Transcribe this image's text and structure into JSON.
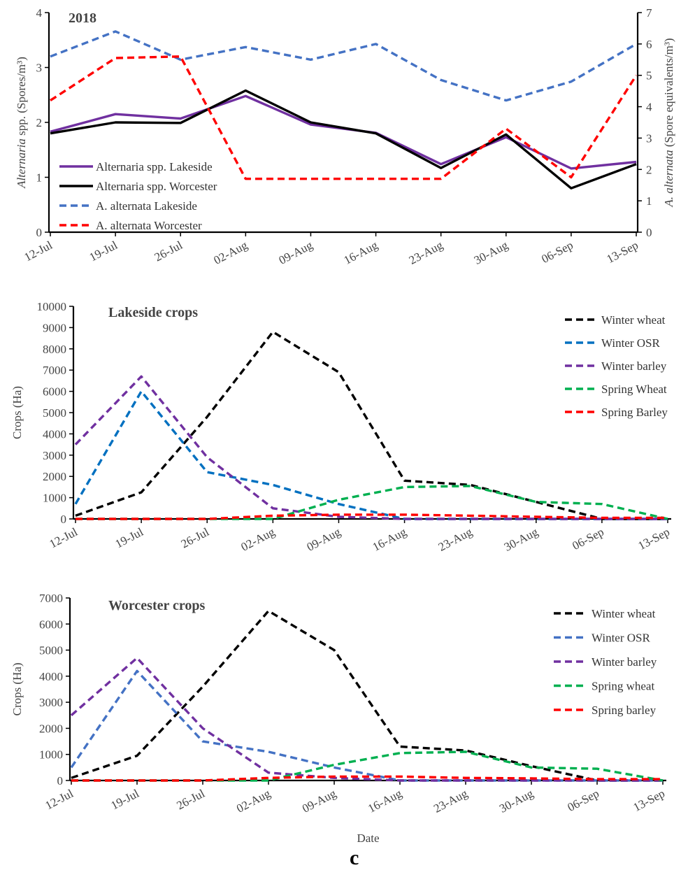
{
  "figure_letter": "c",
  "chart_data": [
    {
      "type": "line",
      "title": "2018",
      "categories": [
        "12-Jul",
        "19-Jul",
        "26-Jul",
        "02-Aug",
        "09-Aug",
        "16-Aug",
        "23-Aug",
        "30-Aug",
        "06-Sep",
        "13-Sep"
      ],
      "ylabel_left_italic": "Alternaria",
      "ylabel_left_rest": " spp. (Spores/m³)",
      "ylabel_right_italic": "A. alternata",
      "ylabel_right_rest": " (Spore equivalents/m³)",
      "ylim": [
        0,
        4
      ],
      "y2lim": [
        0,
        7
      ],
      "yticks": [
        0,
        1,
        2,
        3,
        4
      ],
      "y2ticks": [
        0,
        1,
        2,
        3,
        4,
        5,
        6,
        7
      ],
      "legend_position": "bottom-left",
      "series": [
        {
          "name": "Alternaria spp. Lakeside",
          "axis": "left",
          "color": "#7030a0",
          "dash": false,
          "values": [
            1.83,
            2.15,
            2.07,
            2.48,
            1.96,
            1.81,
            1.24,
            1.73,
            1.16,
            1.28
          ]
        },
        {
          "name": "Alternaria spp. Worcester",
          "axis": "left",
          "color": "#000000",
          "dash": false,
          "values": [
            1.8,
            2.0,
            1.99,
            2.58,
            2.0,
            1.8,
            1.17,
            1.78,
            0.8,
            1.24
          ]
        },
        {
          "name": "A. alternata Lakeside",
          "axis": "right",
          "color": "#4472c4",
          "dash": true,
          "values": [
            5.6,
            6.4,
            5.5,
            5.9,
            5.5,
            6.0,
            4.85,
            4.2,
            4.8,
            6.0
          ]
        },
        {
          "name": "A. alternata Worcester",
          "axis": "right",
          "color": "#ff0000",
          "dash": true,
          "values": [
            4.2,
            5.55,
            5.6,
            1.7,
            1.7,
            1.7,
            1.7,
            3.3,
            1.75,
            5.0
          ]
        }
      ]
    },
    {
      "type": "line",
      "title": "Lakeside crops",
      "categories": [
        "12-Jul",
        "19-Jul",
        "26-Jul",
        "02-Aug",
        "09-Aug",
        "16-Aug",
        "23-Aug",
        "30-Aug",
        "06-Sep",
        "13-Sep"
      ],
      "ylabel": "Crops (Ha)",
      "ylim": [
        0,
        10000
      ],
      "yticks": [
        0,
        1000,
        2000,
        3000,
        4000,
        5000,
        6000,
        7000,
        8000,
        9000,
        10000
      ],
      "legend_position": "top-right",
      "series": [
        {
          "name": "Winter wheat",
          "color": "#000000",
          "values": [
            150,
            1250,
            4800,
            8800,
            6900,
            1800,
            1600,
            800,
            0,
            0
          ]
        },
        {
          "name": "Winter OSR",
          "color": "#0070c0",
          "values": [
            700,
            6000,
            2200,
            1600,
            700,
            0,
            0,
            0,
            0,
            0
          ]
        },
        {
          "name": "Winter barley",
          "color": "#7030a0",
          "values": [
            3500,
            6700,
            2900,
            500,
            100,
            0,
            0,
            0,
            0,
            0
          ]
        },
        {
          "name": "Spring Wheat",
          "color": "#00b050",
          "values": [
            0,
            0,
            0,
            0,
            900,
            1500,
            1550,
            800,
            700,
            0
          ]
        },
        {
          "name": "Spring Barley",
          "color": "#ff0000",
          "values": [
            0,
            0,
            0,
            150,
            200,
            200,
            150,
            100,
            50,
            50
          ]
        }
      ]
    },
    {
      "type": "line",
      "title": "Worcester crops",
      "categories": [
        "12-Jul",
        "19-Jul",
        "26-Jul",
        "02-Aug",
        "09-Aug",
        "16-Aug",
        "23-Aug",
        "30-Aug",
        "06-Sep",
        "13-Sep"
      ],
      "xlabel": "Date",
      "ylabel": "Crops (Ha)",
      "ylim": [
        0,
        7000
      ],
      "yticks": [
        0,
        1000,
        2000,
        3000,
        4000,
        5000,
        6000,
        7000
      ],
      "legend_position": "top-right",
      "series": [
        {
          "name": "Winter wheat",
          "color": "#000000",
          "values": [
            100,
            950,
            3600,
            6500,
            5000,
            1300,
            1150,
            550,
            0,
            0
          ]
        },
        {
          "name": "Winter OSR",
          "color": "#4472c4",
          "values": [
            500,
            4200,
            1500,
            1100,
            500,
            0,
            0,
            0,
            0,
            0
          ]
        },
        {
          "name": "Winter barley",
          "color": "#7030a0",
          "values": [
            2500,
            4700,
            2000,
            300,
            100,
            0,
            0,
            0,
            0,
            0
          ]
        },
        {
          "name": "Spring wheat",
          "color": "#00b050",
          "values": [
            0,
            0,
            0,
            0,
            600,
            1050,
            1100,
            500,
            450,
            0
          ]
        },
        {
          "name": "Spring barley",
          "color": "#ff0000",
          "values": [
            0,
            0,
            0,
            100,
            150,
            150,
            100,
            80,
            50,
            50
          ]
        }
      ]
    }
  ]
}
